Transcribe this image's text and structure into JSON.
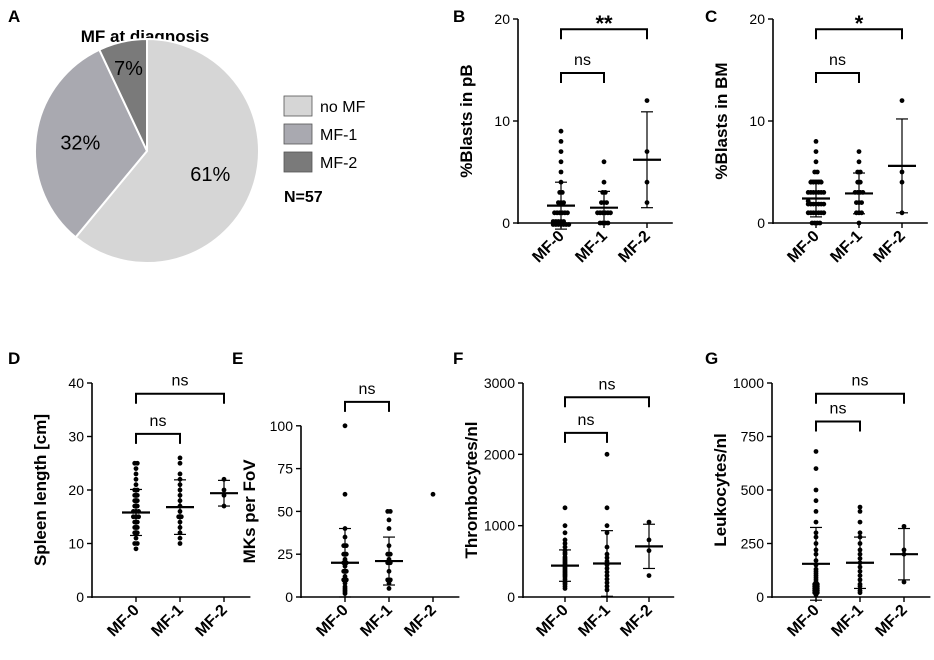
{
  "chart_data": [
    {
      "letter": "A",
      "type": "pie",
      "title": "MF at diagnosis",
      "slices": [
        {
          "label": "no MF",
          "value": 61,
          "text": "61%",
          "color": "#d6d6d6"
        },
        {
          "label": "MF-1",
          "value": 32,
          "text": "32%",
          "color": "#a9a9b0"
        },
        {
          "label": "MF-2",
          "value": 7,
          "text": "7%",
          "color": "#7a7a7a"
        }
      ],
      "note": "N=57"
    },
    {
      "letter": "B",
      "type": "scatter",
      "ylabel": "%Blasts in pB",
      "ylim": [
        0,
        20
      ],
      "yticks": [
        0,
        10,
        20
      ],
      "categories": [
        "MF-0",
        "MF-1",
        "MF-2"
      ],
      "groups": [
        {
          "mean": 1.7,
          "sd": 2.3,
          "points": [
            0,
            0,
            0,
            0,
            0,
            0,
            0,
            0,
            0,
            0,
            0,
            0,
            1,
            1,
            1,
            1,
            1,
            1,
            2,
            2,
            2,
            3,
            3,
            4,
            5,
            6,
            7,
            8,
            9
          ]
        },
        {
          "mean": 1.5,
          "sd": 1.6,
          "points": [
            0,
            0,
            0,
            0,
            1,
            1,
            1,
            1,
            1,
            1,
            2,
            2,
            2,
            3,
            3,
            4,
            6
          ]
        },
        {
          "mean": 6.2,
          "sd": 4.7,
          "points": [
            2,
            4,
            7,
            12
          ]
        }
      ],
      "brackets": [
        {
          "from": 0,
          "to": 1,
          "y": 14.7,
          "label": "ns"
        },
        {
          "from": 0,
          "to": 2,
          "y": 19,
          "label": "**"
        }
      ]
    },
    {
      "letter": "C",
      "type": "scatter",
      "ylabel": "%Blasts in BM",
      "ylim": [
        0,
        20
      ],
      "yticks": [
        0,
        10,
        20
      ],
      "categories": [
        "MF-0",
        "MF-1",
        "MF-2"
      ],
      "groups": [
        {
          "mean": 2.4,
          "sd": 1.8,
          "points": [
            0,
            0,
            0,
            0,
            1,
            1,
            1,
            1,
            1,
            1,
            1,
            2,
            2,
            2,
            2,
            2,
            2,
            2,
            2,
            3,
            3,
            3,
            3,
            3,
            3,
            3,
            4,
            4,
            4,
            4,
            4,
            5,
            5,
            6,
            7,
            8
          ]
        },
        {
          "mean": 2.9,
          "sd": 2.0,
          "points": [
            0,
            1,
            1,
            1,
            2,
            2,
            2,
            3,
            3,
            3,
            3,
            4,
            4,
            5,
            5,
            6,
            7
          ]
        },
        {
          "mean": 5.6,
          "sd": 4.6,
          "points": [
            1,
            4,
            5,
            12
          ]
        }
      ],
      "brackets": [
        {
          "from": 0,
          "to": 1,
          "y": 14.7,
          "label": "ns"
        },
        {
          "from": 0,
          "to": 2,
          "y": 19,
          "label": "*"
        }
      ]
    },
    {
      "letter": "D",
      "type": "scatter",
      "ylabel": "Spleen length [cm]",
      "ylim": [
        0,
        40
      ],
      "yticks": [
        0,
        10,
        20,
        30,
        40
      ],
      "categories": [
        "MF-0",
        "MF-1",
        "MF-2"
      ],
      "groups": [
        {
          "mean": 15.8,
          "sd": 4.3,
          "points": [
            9,
            10,
            10,
            11,
            12,
            12,
            13,
            13,
            14,
            14,
            15,
            15,
            15,
            16,
            16,
            16,
            17,
            17,
            18,
            18,
            19,
            19,
            20,
            20,
            21,
            22,
            23,
            24,
            25,
            25
          ]
        },
        {
          "mean": 16.8,
          "sd": 5.1,
          "points": [
            10,
            11,
            12,
            13,
            14,
            15,
            15,
            16,
            17,
            18,
            19,
            20,
            21,
            22,
            23,
            25,
            26
          ]
        },
        {
          "mean": 19.4,
          "sd": 2.4,
          "points": [
            17,
            19,
            20,
            22
          ]
        }
      ],
      "brackets": [
        {
          "from": 0,
          "to": 1,
          "y": 30.5,
          "label": "ns"
        },
        {
          "from": 0,
          "to": 2,
          "y": 38,
          "label": "ns"
        }
      ]
    },
    {
      "letter": "E",
      "type": "scatter",
      "ylabel": "MKs per FoV",
      "ylim": [
        0,
        125
      ],
      "yticks": [
        0,
        25,
        50,
        75,
        100
      ],
      "categories": [
        "MF-0",
        "MF-1",
        "MF-2"
      ],
      "groups": [
        {
          "mean": 20,
          "sd": 20,
          "points": [
            2,
            3,
            4,
            5,
            6,
            8,
            10,
            10,
            12,
            15,
            15,
            18,
            20,
            20,
            22,
            25,
            25,
            30,
            30,
            35,
            40,
            60,
            100
          ]
        },
        {
          "mean": 21,
          "sd": 14,
          "points": [
            5,
            8,
            10,
            10,
            15,
            20,
            20,
            22,
            25,
            25,
            30,
            40,
            45,
            50,
            50
          ]
        },
        {
          "mean": null,
          "sd": null,
          "points": [
            60
          ]
        }
      ],
      "brackets": [
        {
          "from": 0,
          "to": 1,
          "y": 114,
          "label": "ns"
        }
      ]
    },
    {
      "letter": "F",
      "type": "scatter",
      "ylabel": "Thrombocytes/nl",
      "ylim": [
        0,
        3000
      ],
      "yticks": [
        0,
        1000,
        2000,
        3000
      ],
      "categories": [
        "MF-0",
        "MF-1",
        "MF-2"
      ],
      "groups": [
        {
          "mean": 440,
          "sd": 220,
          "points": [
            120,
            150,
            180,
            200,
            220,
            250,
            280,
            300,
            320,
            340,
            360,
            380,
            400,
            420,
            440,
            460,
            480,
            500,
            520,
            540,
            560,
            600,
            620,
            650,
            700,
            750,
            800,
            900,
            1000,
            1250
          ]
        },
        {
          "mean": 470,
          "sd": 460,
          "points": [
            100,
            150,
            200,
            250,
            300,
            350,
            400,
            450,
            500,
            550,
            600,
            700,
            900,
            1000,
            1250,
            2000
          ]
        },
        {
          "mean": 710,
          "sd": 310,
          "points": [
            300,
            650,
            800,
            1050
          ]
        }
      ],
      "brackets": [
        {
          "from": 0,
          "to": 1,
          "y": 2300,
          "label": "ns"
        },
        {
          "from": 0,
          "to": 2,
          "y": 2800,
          "label": "ns"
        }
      ]
    },
    {
      "letter": "G",
      "type": "scatter",
      "ylabel": "Leukocytes/nl",
      "ylim": [
        0,
        1000
      ],
      "yticks": [
        0,
        250,
        500,
        750,
        1000
      ],
      "categories": [
        "MF-0",
        "MF-1",
        "MF-2"
      ],
      "groups": [
        {
          "mean": 155,
          "sd": 170,
          "points": [
            10,
            20,
            20,
            30,
            30,
            40,
            40,
            50,
            50,
            60,
            60,
            70,
            80,
            90,
            100,
            110,
            120,
            130,
            150,
            170,
            200,
            220,
            250,
            280,
            300,
            350,
            400,
            450,
            500,
            600,
            680
          ]
        },
        {
          "mean": 160,
          "sd": 120,
          "points": [
            20,
            30,
            50,
            60,
            80,
            100,
            120,
            140,
            160,
            180,
            200,
            220,
            250,
            280,
            300,
            350,
            400,
            420
          ]
        },
        {
          "mean": 200,
          "sd": 120,
          "points": [
            70,
            200,
            220,
            330
          ]
        }
      ],
      "brackets": [
        {
          "from": 0,
          "to": 1,
          "y": 820,
          "label": "ns"
        },
        {
          "from": 0,
          "to": 2,
          "y": 950,
          "label": "ns"
        }
      ]
    }
  ]
}
